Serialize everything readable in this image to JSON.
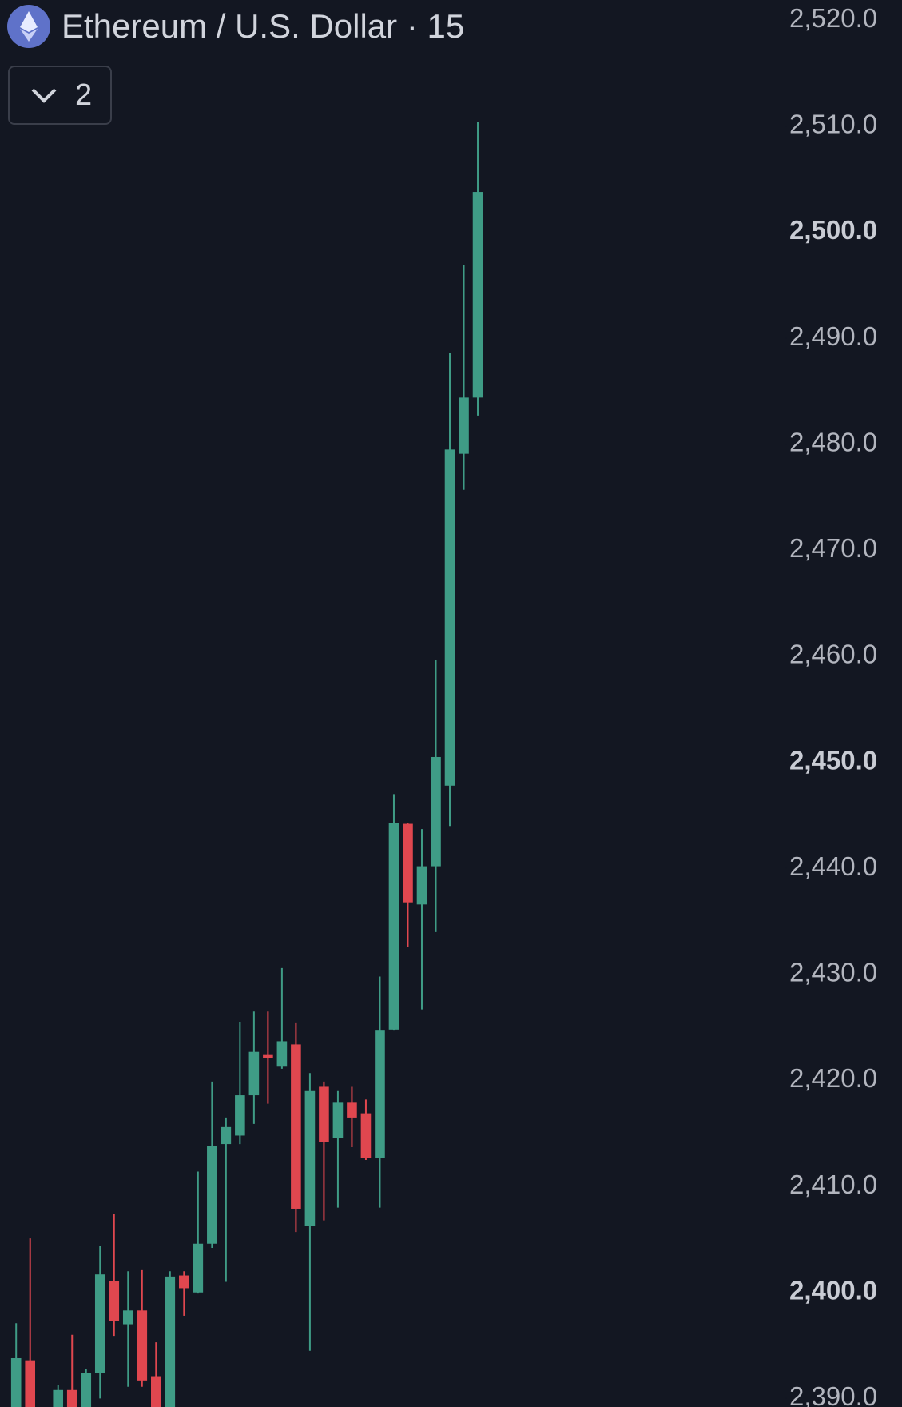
{
  "chart_data": {
    "type": "candlestick",
    "title": "Ethereum / U.S. Dollar · 15",
    "up_color": "#3f9c86",
    "down_color": "#e0474f",
    "ylim": [
      2389.2,
      2521.9
    ],
    "yticks": [
      {
        "value": 2390,
        "label": "2,390.0"
      },
      {
        "value": 2400,
        "label": "2,400.0"
      },
      {
        "value": 2410,
        "label": "2,410.0"
      },
      {
        "value": 2420,
        "label": "2,420.0"
      },
      {
        "value": 2430,
        "label": "2,430.0"
      },
      {
        "value": 2440,
        "label": "2,440.0"
      },
      {
        "value": 2450,
        "label": "2,450.0"
      },
      {
        "value": 2460,
        "label": "2,460.0"
      },
      {
        "value": 2470,
        "label": "2,470.0"
      },
      {
        "value": 2480,
        "label": "2,480.0"
      },
      {
        "value": 2490,
        "label": "2,490.0"
      },
      {
        "value": 2500,
        "label": "2,500.0"
      },
      {
        "value": 2510,
        "label": "2,510.0"
      },
      {
        "value": 2520,
        "label": "2,520.0"
      }
    ],
    "open": [
      2388.5,
      2393.6,
      null,
      2388.5,
      2390.8,
      2388.5,
      2392.4,
      2401.1,
      2397.0,
      2398.3,
      2392.1,
      2388.5,
      2401.6,
      2400.0,
      2404.6,
      2414.0,
      2414.8,
      2418.6,
      2422.4,
      2421.3,
      2423.4,
      2406.3,
      2419.4,
      2414.6,
      2417.9,
      2416.9,
      2412.7,
      2424.8,
      2444.2,
      2436.6,
      2440.2,
      2447.8,
      2479.1,
      2484.4
    ],
    "high": [
      2397.1,
      2405.1,
      null,
      2391.3,
      2396.0,
      2392.8,
      2404.4,
      2407.4,
      2402.0,
      2402.1,
      2395.3,
      2402.0,
      2402.0,
      2411.4,
      2419.9,
      2416.5,
      2425.5,
      2426.5,
      2426.5,
      2430.6,
      2425.4,
      2420.7,
      2419.9,
      2419.0,
      2419.4,
      2418.2,
      2429.8,
      2447.0,
      2444.3,
      2443.7,
      2459.7,
      2488.6,
      2496.9,
      2510.4
    ],
    "low": [
      2387,
      2387,
      null,
      2387,
      2387,
      2387,
      2390.0,
      2395.9,
      2391.1,
      2391.1,
      2387,
      2387,
      2397.8,
      2399.9,
      2404.2,
      2401.0,
      2414.0,
      2415.9,
      2417.8,
      2421.1,
      2405.7,
      2394.5,
      2406.8,
      2408.0,
      2413.7,
      2412.5,
      2408.0,
      2424.7,
      2432.6,
      2426.7,
      2434.0,
      2444.0,
      2475.7,
      2482.7
    ],
    "close": [
      2393.8,
      2388.5,
      null,
      2390.8,
      2388.5,
      2392.4,
      2401.7,
      2397.3,
      2398.3,
      2391.7,
      2388.5,
      2401.5,
      2400.4,
      2404.6,
      2413.8,
      2415.6,
      2418.6,
      2422.7,
      2422.1,
      2423.7,
      2407.9,
      2419.0,
      2414.2,
      2417.9,
      2416.5,
      2412.7,
      2424.7,
      2444.3,
      2436.8,
      2440.2,
      2450.5,
      2479.5,
      2484.4,
      2503.8
    ]
  },
  "indicators_toggle": {
    "count": "2"
  }
}
